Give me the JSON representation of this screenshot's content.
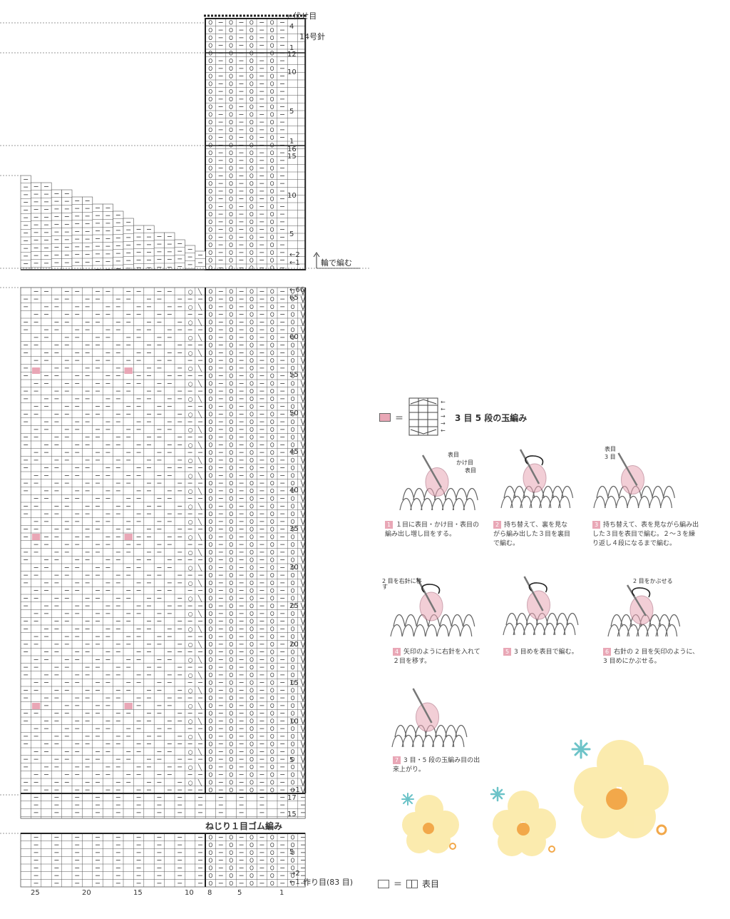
{
  "labels": {
    "bind_off": "←伏せ目",
    "needle": "14号針",
    "knit_in_round": "輪で編む",
    "ribbing": "ねじり１目ゴム編み",
    "cast_on": "作り目(83 目)",
    "legend_knit": "表目",
    "legend_bobble": "3 目 5 段の玉編み"
  },
  "row_numbers_top": [
    "4",
    "1",
    "12",
    "10",
    "5",
    "1",
    "16",
    "15",
    "10",
    "5",
    "2",
    "1"
  ],
  "row_numbers_body": [
    "66",
    "65",
    "60",
    "55",
    "50",
    "45",
    "40",
    "35",
    "30",
    "25",
    "20",
    "15",
    "10",
    "5",
    "1",
    "17",
    "15"
  ],
  "row_numbers_ribbing": [
    "5",
    "2",
    "1"
  ],
  "column_numbers": [
    "25",
    "20",
    "15",
    "10",
    "8",
    "5",
    "1"
  ],
  "steps": [
    {
      "num": "1",
      "text": "１目に表目・かけ目・表目の編み出し増し目をする。",
      "labels": [
        "表目",
        "かけ目",
        "表目"
      ]
    },
    {
      "num": "2",
      "text": "持ち替えて、裏を見ながら編み出した３目を裏目で編む。"
    },
    {
      "num": "3",
      "text": "持ち替えて、表を見ながら編み出した３目を表目で編む。２～３を繰り返し４段になるまで編む。",
      "labels": [
        "表目",
        "3 目"
      ]
    },
    {
      "num": "4",
      "text": "矢印のように右針を入れて２目を移す。",
      "labels": [
        "2 目を右針に移す"
      ]
    },
    {
      "num": "5",
      "text": "3 目めを表目で編む。"
    },
    {
      "num": "6",
      "text": "右針の 2 目を矢印のように、3 目めにかぶせる。",
      "labels": [
        "2 目をかぶせる"
      ]
    },
    {
      "num": "7",
      "text": "3 目・5 段の玉編み目の出来上がり。"
    }
  ],
  "colors": {
    "bobble": "#e9a7b6",
    "grid": "#555555",
    "flower": "#fbe9a6",
    "center": "#f2a84a",
    "star": "#6cc3c8"
  }
}
